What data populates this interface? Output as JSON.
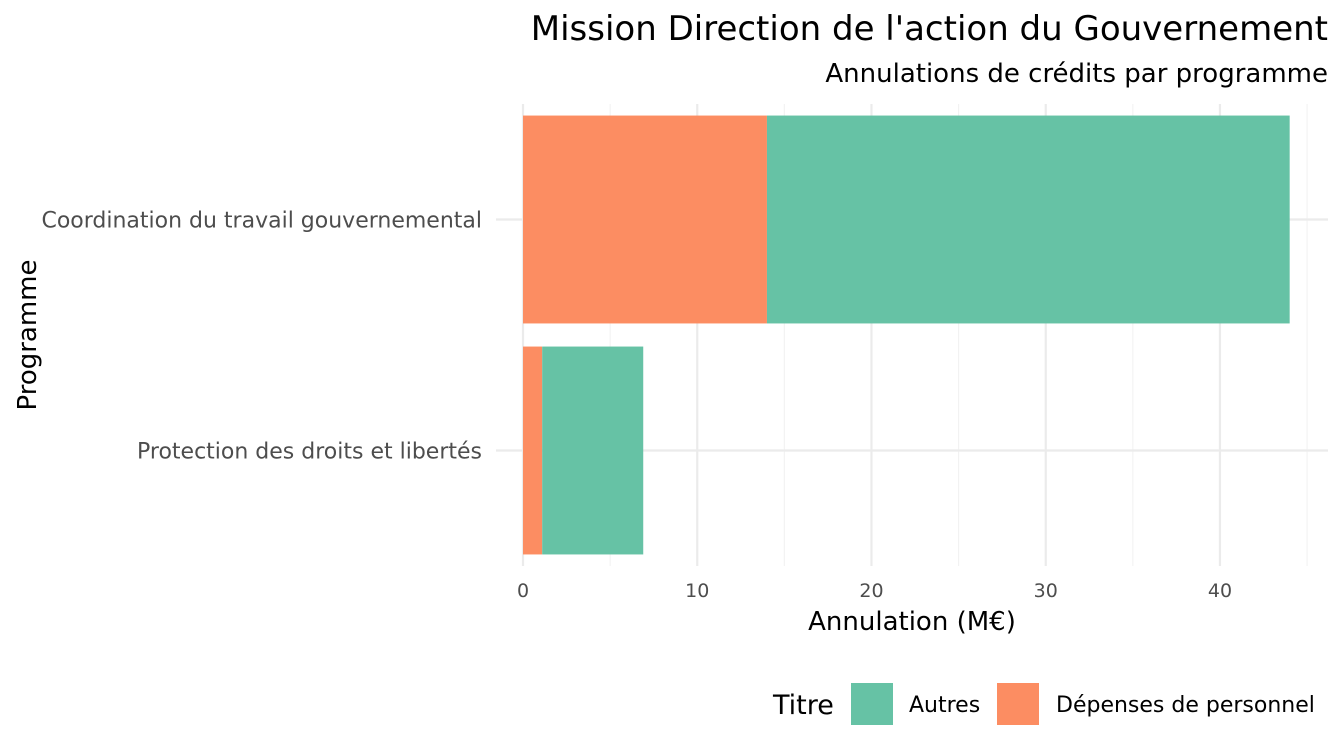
{
  "chart_data": {
    "type": "bar",
    "orientation": "horizontal",
    "stacked": true,
    "title": "Mission Direction de l'action du Gouvernement",
    "subtitle": "Annulations de crédits par programme",
    "xlabel": "Annulation (M€)",
    "ylabel": "Programme",
    "categories": [
      "Coordination du travail gouvernemental",
      "Protection des droits et libertés"
    ],
    "series": [
      {
        "name": "Dépenses de personnel",
        "color": "#fc8d62",
        "values": [
          14.0,
          1.1
        ]
      },
      {
        "name": "Autres",
        "color": "#66c2a5",
        "values": [
          30.0,
          5.8
        ]
      }
    ],
    "xlim": [
      -1.55,
      46.2
    ],
    "xticks": [
      0,
      10,
      20,
      30,
      40
    ],
    "grid": true,
    "legend": {
      "title": "Titre",
      "position": "bottom-right",
      "items": [
        {
          "label": "Autres",
          "color": "#66c2a5"
        },
        {
          "label": "Dépenses de personnel",
          "color": "#fc8d62"
        }
      ]
    }
  }
}
